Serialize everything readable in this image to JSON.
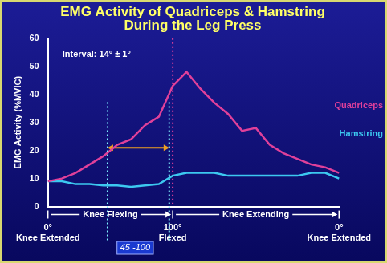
{
  "chart_data": {
    "type": "line",
    "title": [
      "EMG Activity of Quadriceps & Hamstring",
      "During the Leg Press"
    ],
    "y_label": "EMG Activity (%MVIC)",
    "annotations": [
      "Interval: 14° ± 1°",
      "Knee Flexing",
      "Knee Extending",
      "45 -100"
    ],
    "categories": [
      [
        "0°",
        "Knee Extended"
      ],
      null,
      null,
      null,
      null,
      null,
      null,
      null,
      null,
      [
        "100°",
        "Flexed"
      ],
      null,
      null,
      null,
      null,
      null,
      null,
      null,
      null,
      null,
      null,
      null,
      [
        "0°",
        "Knee Extended"
      ]
    ],
    "series": [
      {
        "name": "Quadriceps",
        "color": "#e0409a",
        "values": [
          9,
          10,
          12,
          15,
          18,
          22,
          24,
          29,
          32,
          43,
          48,
          42,
          37,
          33,
          27,
          28,
          22,
          19,
          17,
          15,
          14,
          12
        ]
      },
      {
        "name": "Hamstring",
        "color": "#3cc8f0",
        "values": [
          9,
          9,
          8,
          8,
          7.5,
          7.5,
          7,
          7.5,
          8,
          11,
          12,
          12,
          12,
          11,
          11,
          11,
          11,
          11,
          11,
          12,
          12,
          10
        ]
      }
    ],
    "ylim": [
      0,
      60
    ],
    "yticks": [
      0,
      10,
      20,
      30,
      40,
      50,
      60
    ],
    "grid": false,
    "legend": "right"
  }
}
